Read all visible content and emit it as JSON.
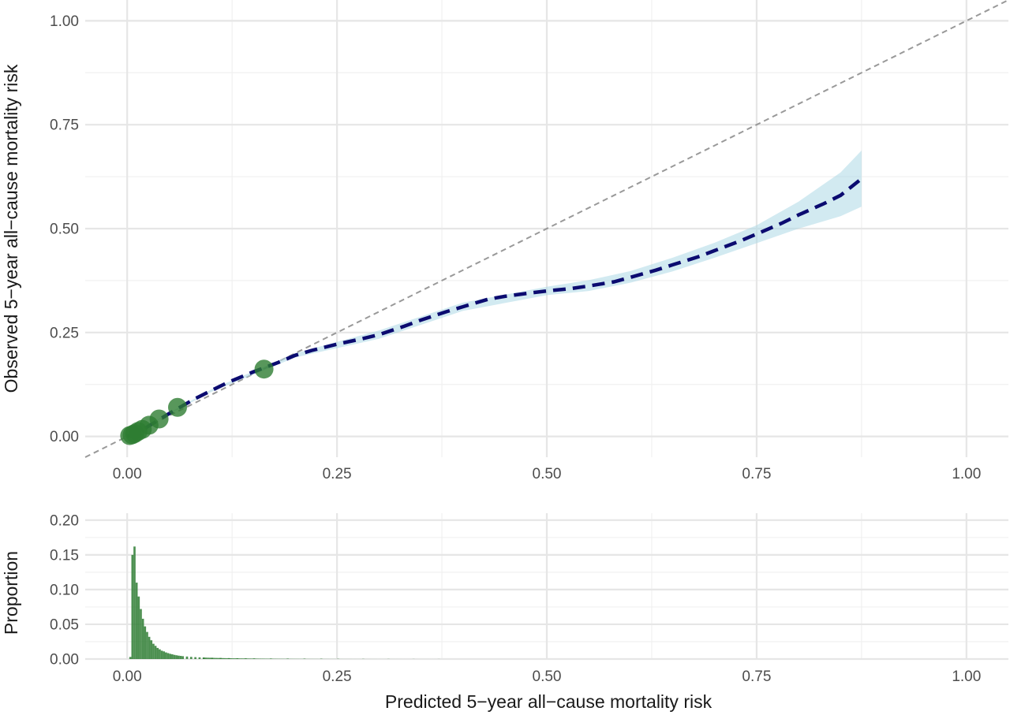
{
  "chart_data": [
    {
      "type": "line",
      "panel": "calibration",
      "xlabel": "",
      "ylabel": "Observed 5−year all−cause mortality risk",
      "xlim": [
        -0.05,
        1.05
      ],
      "ylim": [
        -0.05,
        1.05
      ],
      "x_ticks": [
        0.0,
        0.25,
        0.5,
        0.75,
        1.0
      ],
      "x_tick_labels": [
        "0.00",
        "0.25",
        "0.50",
        "0.75",
        "1.00"
      ],
      "y_ticks": [
        0.0,
        0.25,
        0.5,
        0.75,
        1.0
      ],
      "y_tick_labels": [
        "0.00",
        "0.25",
        "0.50",
        "0.75",
        "1.00"
      ],
      "grid": true,
      "reference_line": {
        "style": "dashed",
        "color": "#999999",
        "slope": 1,
        "intercept": 0
      },
      "series": [
        {
          "kind": "smoothed-line",
          "style": "dashed",
          "color": "#0b0b70",
          "x": [
            0.0,
            0.02,
            0.05,
            0.08,
            0.1,
            0.12,
            0.15,
            0.18,
            0.2,
            0.22,
            0.25,
            0.28,
            0.3,
            0.33,
            0.35,
            0.38,
            0.4,
            0.43,
            0.45,
            0.48,
            0.5,
            0.53,
            0.55,
            0.58,
            0.6,
            0.63,
            0.65,
            0.68,
            0.7,
            0.73,
            0.75,
            0.78,
            0.8,
            0.83,
            0.85,
            0.875
          ],
          "y": [
            0.0,
            0.018,
            0.055,
            0.09,
            0.11,
            0.13,
            0.155,
            0.178,
            0.195,
            0.207,
            0.222,
            0.235,
            0.245,
            0.265,
            0.28,
            0.3,
            0.312,
            0.33,
            0.337,
            0.345,
            0.35,
            0.356,
            0.362,
            0.372,
            0.383,
            0.4,
            0.413,
            0.432,
            0.447,
            0.47,
            0.487,
            0.513,
            0.533,
            0.56,
            0.58,
            0.62
          ]
        },
        {
          "kind": "confidence-band",
          "color": "#add8e6",
          "x": [
            0.0,
            0.1,
            0.2,
            0.3,
            0.4,
            0.5,
            0.55,
            0.6,
            0.65,
            0.7,
            0.75,
            0.8,
            0.85,
            0.875
          ],
          "lower": [
            0.0,
            0.107,
            0.19,
            0.235,
            0.302,
            0.34,
            0.35,
            0.37,
            0.397,
            0.43,
            0.465,
            0.5,
            0.53,
            0.553
          ],
          "upper": [
            0.0,
            0.113,
            0.2,
            0.255,
            0.322,
            0.36,
            0.376,
            0.398,
            0.43,
            0.466,
            0.508,
            0.565,
            0.635,
            0.688
          ]
        },
        {
          "kind": "points",
          "color": "#2e7d32",
          "x": [
            0.003,
            0.006,
            0.009,
            0.013,
            0.018,
            0.026,
            0.038,
            0.06,
            0.163
          ],
          "y": [
            0.002,
            0.004,
            0.007,
            0.012,
            0.017,
            0.027,
            0.042,
            0.07,
            0.162
          ]
        }
      ]
    },
    {
      "type": "bar",
      "panel": "distribution",
      "xlabel": "Predicted 5−year all−cause mortality risk",
      "ylabel": "Proportion",
      "xlim": [
        -0.05,
        1.05
      ],
      "ylim": [
        0.0,
        0.21
      ],
      "x_ticks": [
        0.0,
        0.25,
        0.5,
        0.75,
        1.0
      ],
      "x_tick_labels": [
        "0.00",
        "0.25",
        "0.50",
        "0.75",
        "1.00"
      ],
      "y_ticks": [
        0.0,
        0.05,
        0.1,
        0.15,
        0.2
      ],
      "y_tick_labels": [
        "0.00",
        "0.05",
        "0.10",
        "0.15",
        "0.20"
      ],
      "grid": true,
      "bin_width": 0.0025,
      "color": "#2e7d32",
      "bins_x": [
        0.0025,
        0.005,
        0.0075,
        0.01,
        0.0125,
        0.015,
        0.0175,
        0.02,
        0.0225,
        0.025,
        0.0275,
        0.03,
        0.0325,
        0.035,
        0.0375,
        0.04,
        0.0425,
        0.045,
        0.0475,
        0.05,
        0.0525,
        0.055,
        0.0575,
        0.06,
        0.0625,
        0.065,
        0.07,
        0.075,
        0.08,
        0.085,
        0.09,
        0.1,
        0.11,
        0.12,
        0.13,
        0.14,
        0.15,
        0.17,
        0.19,
        0.21,
        0.23,
        0.25,
        0.28,
        0.31,
        0.34,
        0.37
      ],
      "values": [
        0.003,
        0.15,
        0.162,
        0.11,
        0.09,
        0.072,
        0.058,
        0.047,
        0.039,
        0.032,
        0.027,
        0.022,
        0.019,
        0.016,
        0.014,
        0.012,
        0.011,
        0.0095,
        0.0085,
        0.0075,
        0.0068,
        0.006,
        0.0054,
        0.0049,
        0.0045,
        0.0041,
        0.0036,
        0.0031,
        0.0027,
        0.0024,
        0.0021,
        0.0018,
        0.0015,
        0.0013,
        0.0011,
        0.001,
        0.0009,
        0.0007,
        0.0006,
        0.0005,
        0.0004,
        0.0003,
        0.0002,
        0.00015,
        0.0001,
        8e-05
      ]
    }
  ]
}
